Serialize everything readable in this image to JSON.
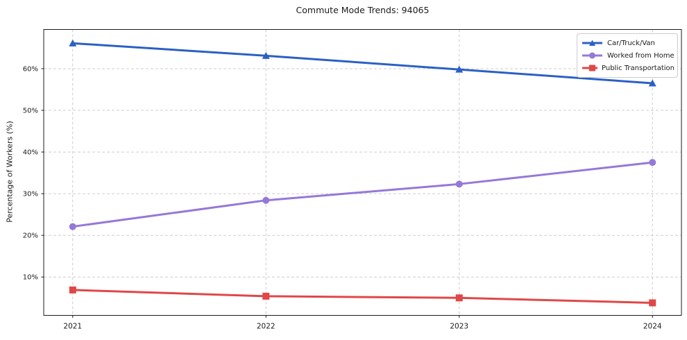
{
  "chart_data": {
    "type": "line",
    "title": "Commute Mode Trends: 94065",
    "xlabel": "",
    "ylabel": "Percentage of Workers (%)",
    "x": [
      2021,
      2022,
      2023,
      2024
    ],
    "x_tick_labels": [
      "2021",
      "2022",
      "2023",
      "2024"
    ],
    "yticks": [
      10,
      20,
      30,
      40,
      50,
      60
    ],
    "ytick_labels": [
      "10%",
      "20%",
      "30%",
      "40%",
      "50%",
      "60%"
    ],
    "xlim": [
      2020.85,
      2024.15
    ],
    "ylim": [
      0.8,
      69.4
    ],
    "grid": true,
    "grid_style": "dashed",
    "legend_position": "upper-right",
    "series": [
      {
        "name": "Car/Truck/Van",
        "marker": "triangle",
        "color": "#2b60c4",
        "values": [
          66.1,
          63.1,
          59.8,
          56.5
        ]
      },
      {
        "name": "Worked from Home",
        "marker": "circle",
        "color": "#9678d8",
        "values": [
          22.1,
          28.4,
          32.3,
          37.5
        ]
      },
      {
        "name": "Public Transportation",
        "marker": "square",
        "color": "#e14747",
        "values": [
          6.9,
          5.4,
          5.0,
          3.8
        ]
      }
    ]
  },
  "colors": {
    "background": "#ffffff",
    "grid": "#cdcdcd",
    "spine": "#1a1a1a",
    "text": "#1a1a1a",
    "legend_border": "#cccccc"
  }
}
